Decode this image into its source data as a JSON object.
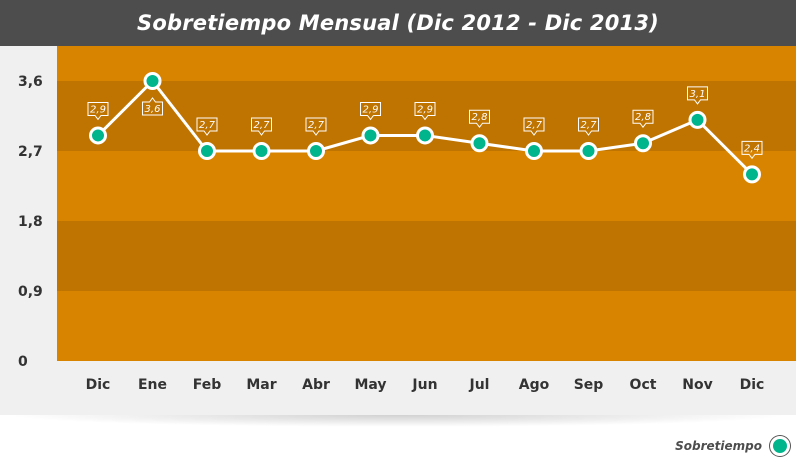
{
  "title": "Sobretiempo Mensual (Dic 2012 - Dic 2013)",
  "colors": {
    "title_bg": "#4d4d4d",
    "band_light": "#d98400",
    "band_dark": "#bf7300",
    "line": "#ffffff",
    "marker": "#00b48c"
  },
  "legend": {
    "label": "Sobretiempo",
    "placement": "bottom-right"
  },
  "chart_data": {
    "type": "line",
    "title": "Sobretiempo Mensual (Dic 2012 - Dic 2013)",
    "xlabel": "",
    "ylabel": "",
    "categories": [
      "Dic",
      "Ene",
      "Feb",
      "Mar",
      "Abr",
      "May",
      "Jun",
      "Jul",
      "Ago",
      "Sep",
      "Oct",
      "Nov",
      "Dic"
    ],
    "series": [
      {
        "name": "Sobretiempo",
        "values": [
          2.9,
          3.6,
          2.7,
          2.7,
          2.7,
          2.9,
          2.9,
          2.8,
          2.7,
          2.7,
          2.8,
          3.1,
          2.4
        ],
        "data_labels": [
          "2,9",
          "3,6",
          "2,7",
          "2,7",
          "2,7",
          "2,9",
          "2,9",
          "2,8",
          "2,7",
          "2,7",
          "2,8",
          "3,1",
          "2,4"
        ]
      }
    ],
    "ylim": [
      0,
      4.05
    ],
    "yticks": [
      0,
      0.9,
      1.8,
      2.7,
      3.6
    ],
    "ytick_labels": [
      "0",
      "0,9",
      "1,8",
      "2,7",
      "3,6"
    ],
    "grid": "alternating horizontal bands",
    "legend": "bottom-right"
  }
}
